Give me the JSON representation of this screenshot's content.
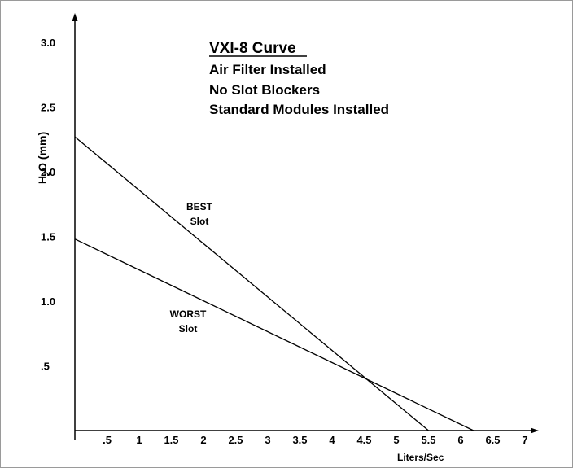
{
  "chart_data": {
    "type": "line",
    "title": "VXI-8 Curve",
    "subtitle_lines": [
      "Air Filter Installed",
      "No Slot Blockers",
      "Standard Modules Installed"
    ],
    "ylabel_main": "H",
    "ylabel_sub": "2",
    "ylabel_rest": "O (mm)",
    "xlabel": "Liters/Sec",
    "xlim": [
      0,
      7.5
    ],
    "ylim": [
      0,
      3.2
    ],
    "x_ticks": [
      0.5,
      1,
      1.5,
      2,
      2.5,
      3,
      3.5,
      4,
      4.5,
      5,
      5.5,
      6,
      6.5,
      7
    ],
    "x_tick_labels": [
      ".5",
      "1",
      "1.5",
      "2",
      "2.5",
      "3",
      "3.5",
      "4",
      "4.5",
      "5",
      "5.5",
      "6",
      "6.5",
      "7"
    ],
    "y_ticks": [
      0.5,
      1.0,
      1.5,
      2.0,
      2.5,
      3.0
    ],
    "y_tick_labels": [
      ".5",
      "1.0",
      "1.5",
      "2.0",
      "2.5",
      "3.0"
    ],
    "grid": false,
    "series": [
      {
        "name_line1": "BEST",
        "name_line2": "Slot",
        "x": [
          0,
          5.5
        ],
        "y": [
          2.27,
          0
        ]
      },
      {
        "name_line1": "WORST",
        "name_line2": "Slot",
        "x": [
          0,
          6.2
        ],
        "y": [
          1.48,
          0
        ]
      }
    ]
  }
}
